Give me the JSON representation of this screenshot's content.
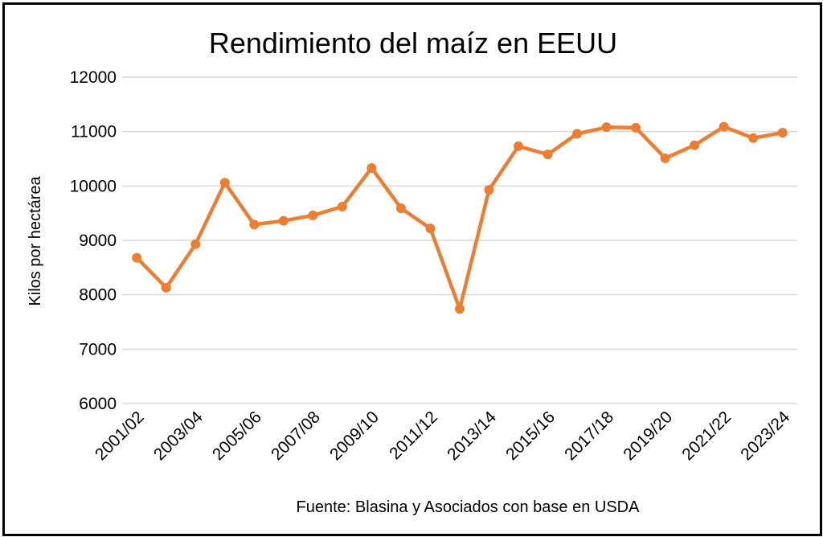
{
  "chart_data": {
    "type": "line",
    "title": "Rendimiento del maíz en EEUU",
    "xlabel": "",
    "ylabel": "Kilos por hectárea",
    "source": "Fuente: Blasina y Asociados con base en USDA",
    "ylim": [
      6000,
      12000
    ],
    "yticks": [
      6000,
      7000,
      8000,
      9000,
      10000,
      11000,
      12000
    ],
    "x": [
      "2001/02",
      "2002/03",
      "2003/04",
      "2004/05",
      "2005/06",
      "2006/07",
      "2007/08",
      "2008/09",
      "2009/10",
      "2010/11",
      "2011/12",
      "2012/13",
      "2013/14",
      "2014/15",
      "2015/16",
      "2016/17",
      "2017/18",
      "2018/19",
      "2019/20",
      "2020/21",
      "2021/22",
      "2022/23",
      "2023/24"
    ],
    "xtick_labels": [
      "2001/02",
      "2003/04",
      "2005/06",
      "2007/08",
      "2009/10",
      "2011/12",
      "2013/14",
      "2015/16",
      "2017/18",
      "2019/20",
      "2021/22",
      "2023/24"
    ],
    "series": [
      {
        "values": [
          8680,
          8130,
          8930,
          10060,
          9290,
          9360,
          9460,
          9620,
          10330,
          9590,
          9220,
          7740,
          9930,
          10730,
          10580,
          10960,
          11080,
          11070,
          10510,
          10750,
          11090,
          10880,
          10980
        ]
      }
    ],
    "grid": true,
    "legend": "none",
    "colors": {
      "line": "#ED7D31",
      "grid": "#D9D9D9"
    }
  }
}
